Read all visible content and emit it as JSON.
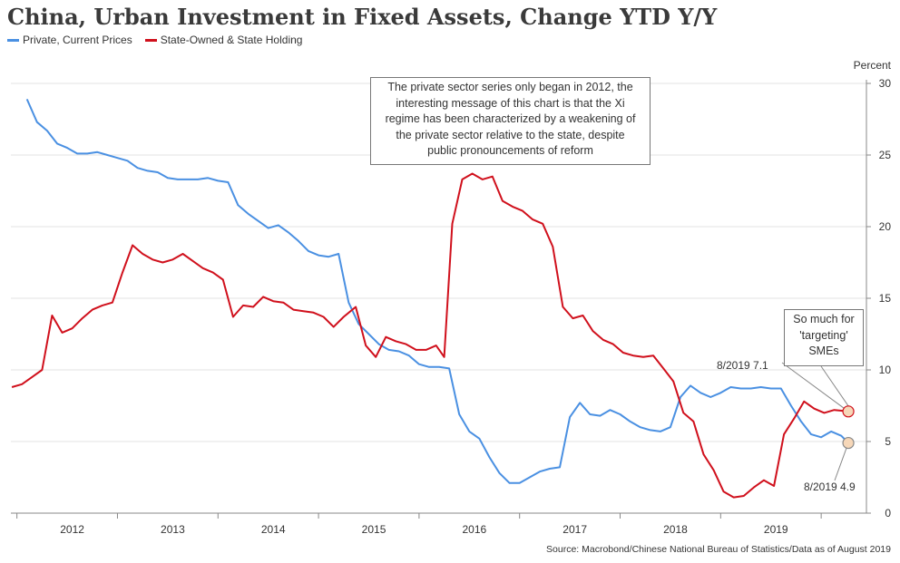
{
  "chart_data": {
    "type": "line",
    "title": "China, Urban Investment in Fixed Assets, Change YTD Y/Y",
    "ylabel": "Percent",
    "ylim": [
      0,
      30
    ],
    "yticks": [
      0,
      5,
      10,
      15,
      20,
      25,
      30
    ],
    "x_range": [
      2011.39,
      2019.9
    ],
    "x_tick_labels": [
      "2012",
      "2013",
      "2014",
      "2015",
      "2016",
      "2017",
      "2018",
      "2019"
    ],
    "grid": true,
    "legend_position": "top-left",
    "source": "Source: Macrobond/Chinese National Bureau of Statistics/Data as of August 2019",
    "series": [
      {
        "name": "Private, Current Prices",
        "color": "#4a90e2",
        "points": [
          [
            2011.55,
            28.9
          ],
          [
            2011.65,
            27.3
          ],
          [
            2011.75,
            26.7
          ],
          [
            2011.85,
            25.8
          ],
          [
            2011.95,
            25.5
          ],
          [
            2012.05,
            25.1
          ],
          [
            2012.15,
            25.1
          ],
          [
            2012.25,
            25.2
          ],
          [
            2012.35,
            25.0
          ],
          [
            2012.45,
            24.8
          ],
          [
            2012.55,
            24.6
          ],
          [
            2012.65,
            24.1
          ],
          [
            2012.75,
            23.9
          ],
          [
            2012.85,
            23.8
          ],
          [
            2012.95,
            23.4
          ],
          [
            2013.05,
            23.3
          ],
          [
            2013.15,
            23.3
          ],
          [
            2013.25,
            23.3
          ],
          [
            2013.35,
            23.4
          ],
          [
            2013.45,
            23.2
          ],
          [
            2013.55,
            23.1
          ],
          [
            2013.65,
            21.5
          ],
          [
            2013.75,
            20.9
          ],
          [
            2013.85,
            20.4
          ],
          [
            2013.95,
            19.9
          ],
          [
            2014.05,
            20.1
          ],
          [
            2014.15,
            19.6
          ],
          [
            2014.25,
            19.0
          ],
          [
            2014.35,
            18.3
          ],
          [
            2014.45,
            18.0
          ],
          [
            2014.55,
            17.9
          ],
          [
            2014.65,
            18.1
          ],
          [
            2014.75,
            14.7
          ],
          [
            2014.85,
            13.2
          ],
          [
            2014.95,
            12.5
          ],
          [
            2015.05,
            11.8
          ],
          [
            2015.15,
            11.4
          ],
          [
            2015.25,
            11.3
          ],
          [
            2015.35,
            11.0
          ],
          [
            2015.45,
            10.4
          ],
          [
            2015.55,
            10.2
          ],
          [
            2015.65,
            10.2
          ],
          [
            2015.75,
            10.1
          ],
          [
            2015.85,
            6.9
          ],
          [
            2015.95,
            5.7
          ],
          [
            2016.05,
            5.2
          ],
          [
            2016.15,
            3.9
          ],
          [
            2016.25,
            2.8
          ],
          [
            2016.35,
            2.1
          ],
          [
            2016.45,
            2.1
          ],
          [
            2016.55,
            2.5
          ],
          [
            2016.65,
            2.9
          ],
          [
            2016.75,
            3.1
          ],
          [
            2016.85,
            3.2
          ],
          [
            2016.95,
            6.7
          ],
          [
            2017.05,
            7.7
          ],
          [
            2017.15,
            6.9
          ],
          [
            2017.25,
            6.8
          ],
          [
            2017.35,
            7.2
          ],
          [
            2017.45,
            6.9
          ],
          [
            2017.55,
            6.4
          ],
          [
            2017.65,
            6.0
          ],
          [
            2017.75,
            5.8
          ],
          [
            2017.85,
            5.7
          ],
          [
            2017.95,
            6.0
          ],
          [
            2018.05,
            8.1
          ],
          [
            2018.15,
            8.9
          ],
          [
            2018.25,
            8.4
          ],
          [
            2018.35,
            8.1
          ],
          [
            2018.45,
            8.4
          ],
          [
            2018.55,
            8.8
          ],
          [
            2018.65,
            8.7
          ],
          [
            2018.75,
            8.7
          ],
          [
            2018.85,
            8.8
          ],
          [
            2018.95,
            8.7
          ],
          [
            2019.05,
            8.7
          ],
          [
            2019.15,
            7.5
          ],
          [
            2019.25,
            6.4
          ],
          [
            2019.35,
            5.5
          ],
          [
            2019.45,
            5.3
          ],
          [
            2019.55,
            5.7
          ],
          [
            2019.65,
            5.4
          ],
          [
            2019.72,
            4.9
          ]
        ]
      },
      {
        "name": "State-Owned & State Holding",
        "color": "#d0101c",
        "points": [
          [
            2011.4,
            8.8
          ],
          [
            2011.5,
            9.0
          ],
          [
            2011.6,
            9.5
          ],
          [
            2011.7,
            10.0
          ],
          [
            2011.8,
            13.8
          ],
          [
            2011.9,
            12.6
          ],
          [
            2012.0,
            12.9
          ],
          [
            2012.1,
            13.6
          ],
          [
            2012.2,
            14.2
          ],
          [
            2012.3,
            14.5
          ],
          [
            2012.4,
            14.7
          ],
          [
            2012.5,
            16.8
          ],
          [
            2012.6,
            18.7
          ],
          [
            2012.7,
            18.1
          ],
          [
            2012.8,
            17.7
          ],
          [
            2012.9,
            17.5
          ],
          [
            2013.0,
            17.7
          ],
          [
            2013.1,
            18.1
          ],
          [
            2013.2,
            17.6
          ],
          [
            2013.3,
            17.1
          ],
          [
            2013.4,
            16.8
          ],
          [
            2013.5,
            16.3
          ],
          [
            2013.6,
            13.7
          ],
          [
            2013.7,
            14.5
          ],
          [
            2013.8,
            14.4
          ],
          [
            2013.9,
            15.1
          ],
          [
            2014.0,
            14.8
          ],
          [
            2014.1,
            14.7
          ],
          [
            2014.2,
            14.2
          ],
          [
            2014.3,
            14.1
          ],
          [
            2014.4,
            14.0
          ],
          [
            2014.5,
            13.7
          ],
          [
            2014.6,
            13.0
          ],
          [
            2014.7,
            13.7
          ],
          [
            2014.82,
            14.4
          ],
          [
            2014.92,
            11.7
          ],
          [
            2015.02,
            10.9
          ],
          [
            2015.12,
            12.3
          ],
          [
            2015.22,
            12.0
          ],
          [
            2015.32,
            11.8
          ],
          [
            2015.42,
            11.4
          ],
          [
            2015.52,
            11.4
          ],
          [
            2015.62,
            11.7
          ],
          [
            2015.7,
            10.9
          ],
          [
            2015.78,
            20.2
          ],
          [
            2015.88,
            23.3
          ],
          [
            2015.98,
            23.7
          ],
          [
            2016.08,
            23.3
          ],
          [
            2016.18,
            23.5
          ],
          [
            2016.28,
            21.8
          ],
          [
            2016.38,
            21.4
          ],
          [
            2016.48,
            21.1
          ],
          [
            2016.58,
            20.5
          ],
          [
            2016.68,
            20.2
          ],
          [
            2016.78,
            18.6
          ],
          [
            2016.88,
            14.4
          ],
          [
            2016.98,
            13.6
          ],
          [
            2017.08,
            13.8
          ],
          [
            2017.18,
            12.7
          ],
          [
            2017.28,
            12.1
          ],
          [
            2017.38,
            11.8
          ],
          [
            2017.48,
            11.2
          ],
          [
            2017.58,
            11.0
          ],
          [
            2017.68,
            10.9
          ],
          [
            2017.78,
            11.0
          ],
          [
            2017.88,
            10.1
          ],
          [
            2017.98,
            9.2
          ],
          [
            2018.08,
            7.0
          ],
          [
            2018.18,
            6.4
          ],
          [
            2018.28,
            4.1
          ],
          [
            2018.38,
            3.0
          ],
          [
            2018.48,
            1.5
          ],
          [
            2018.58,
            1.1
          ],
          [
            2018.68,
            1.2
          ],
          [
            2018.78,
            1.8
          ],
          [
            2018.88,
            2.3
          ],
          [
            2018.98,
            1.9
          ],
          [
            2019.08,
            5.5
          ],
          [
            2019.18,
            6.6
          ],
          [
            2019.28,
            7.8
          ],
          [
            2019.38,
            7.3
          ],
          [
            2019.48,
            7.0
          ],
          [
            2019.58,
            7.2
          ],
          [
            2019.72,
            7.1
          ]
        ]
      }
    ],
    "annotations": {
      "main_note": [
        "The private sector series only began in 2012, the",
        "interesting message of this chart is that the Xi",
        "regime has been characterized by a weakening of",
        "the private sector relative to the state, despite",
        "public pronouncements of reform"
      ],
      "sme_note": [
        "So much for",
        "'targeting'",
        "SMEs"
      ],
      "state_label": "8/2019 7.1",
      "private_label": "8/2019 4.9"
    }
  }
}
